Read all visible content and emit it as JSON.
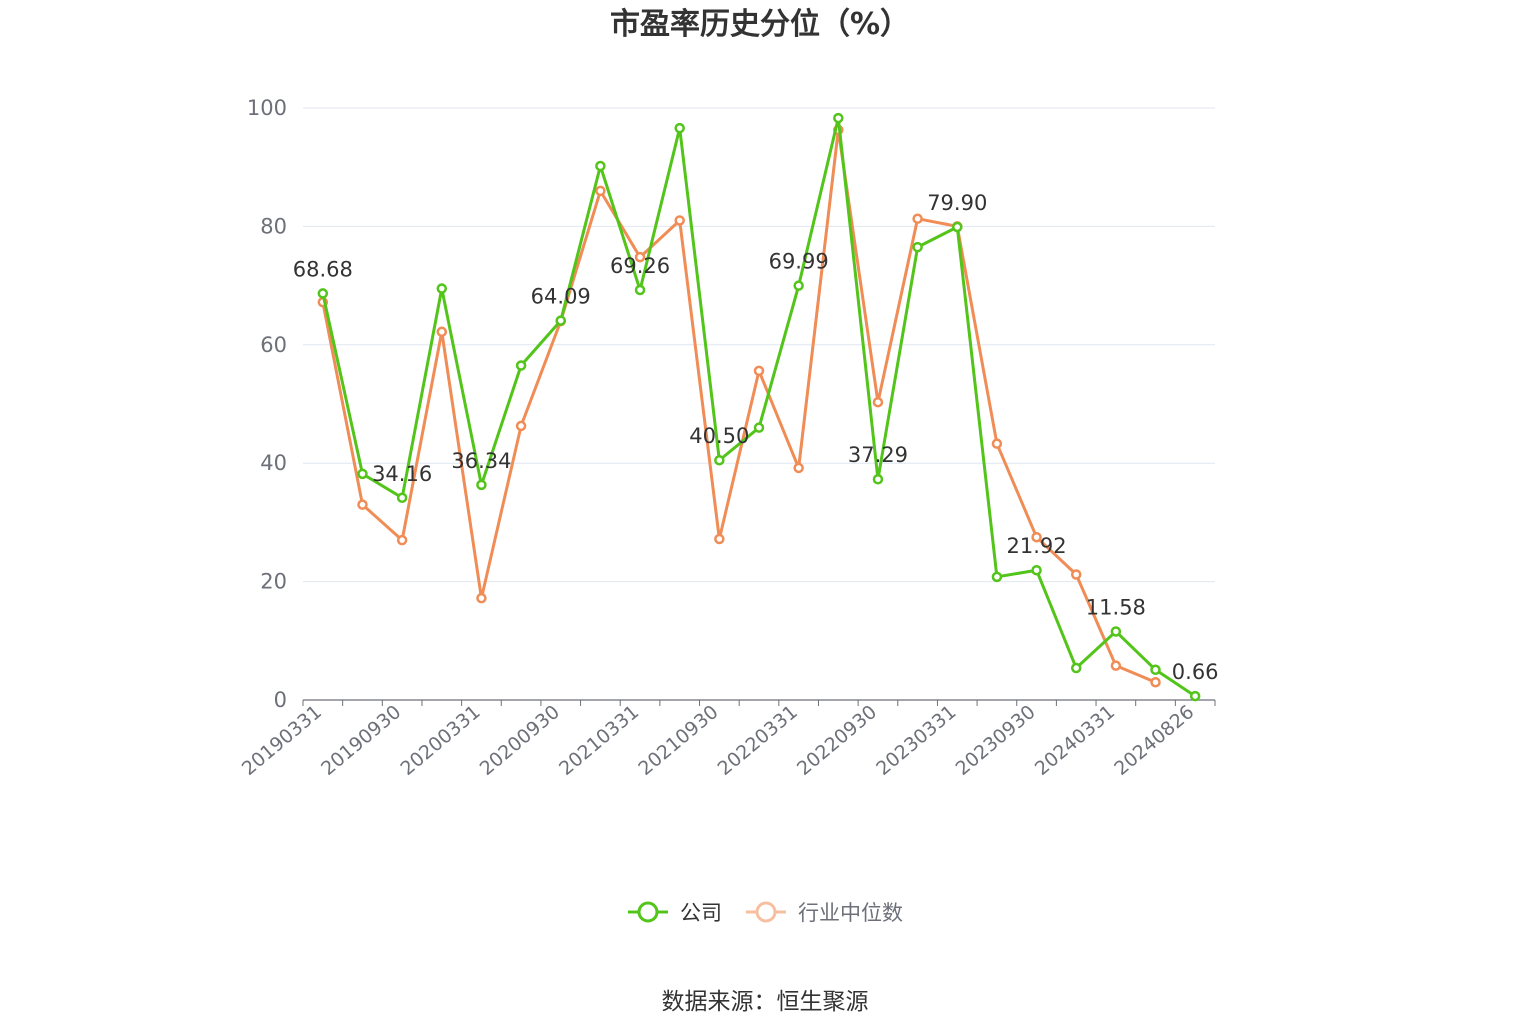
{
  "chart_data": {
    "type": "line",
    "title": "市盈率历史分位（%）",
    "source": "数据来源：恒生聚源",
    "ylim": [
      0,
      100
    ],
    "yticks": [
      0,
      20,
      40,
      60,
      80,
      100
    ],
    "xticks": [
      "20190331",
      "20190930",
      "20200331",
      "20200930",
      "20210331",
      "20210930",
      "20220331",
      "20220930",
      "20230331",
      "20230930",
      "20240331",
      "20240826"
    ],
    "grid": true,
    "legend_position": "bottom-center",
    "x": [
      "20190331",
      "20190630",
      "20190930",
      "20191231",
      "20200331",
      "20200630",
      "20200930",
      "20201231",
      "20210331",
      "20210630",
      "20210930",
      "20211231",
      "20220331",
      "20220630",
      "20220930",
      "20221231",
      "20230331",
      "20230630",
      "20230930",
      "20231231",
      "20240331",
      "20240630",
      "20240826"
    ],
    "series": [
      {
        "name": "公司",
        "color": "#52c41a",
        "values": [
          68.68,
          38.2,
          34.16,
          69.5,
          36.34,
          56.5,
          64.09,
          90.2,
          69.26,
          96.6,
          40.5,
          46.0,
          69.99,
          98.3,
          37.29,
          76.5,
          79.9,
          20.8,
          21.92,
          5.4,
          11.58,
          5.1,
          0.66
        ],
        "labels": [
          "68.68",
          "",
          "34.16",
          "",
          "36.34",
          "",
          "64.09",
          "",
          "69.26",
          "",
          "40.50",
          "",
          "69.99",
          "",
          "37.29",
          "",
          "79.90",
          "",
          "21.92",
          "",
          "11.58",
          "",
          "0.66"
        ]
      },
      {
        "name": "行业中位数",
        "color": "#f08c55",
        "values": [
          67.2,
          33.0,
          27.0,
          62.2,
          17.2,
          46.3,
          64.0,
          86.0,
          74.8,
          81.0,
          27.2,
          55.6,
          39.2,
          96.3,
          50.3,
          81.3,
          80.0,
          43.3,
          27.5,
          21.2,
          5.8,
          3.0,
          null
        ],
        "labels": []
      }
    ]
  }
}
